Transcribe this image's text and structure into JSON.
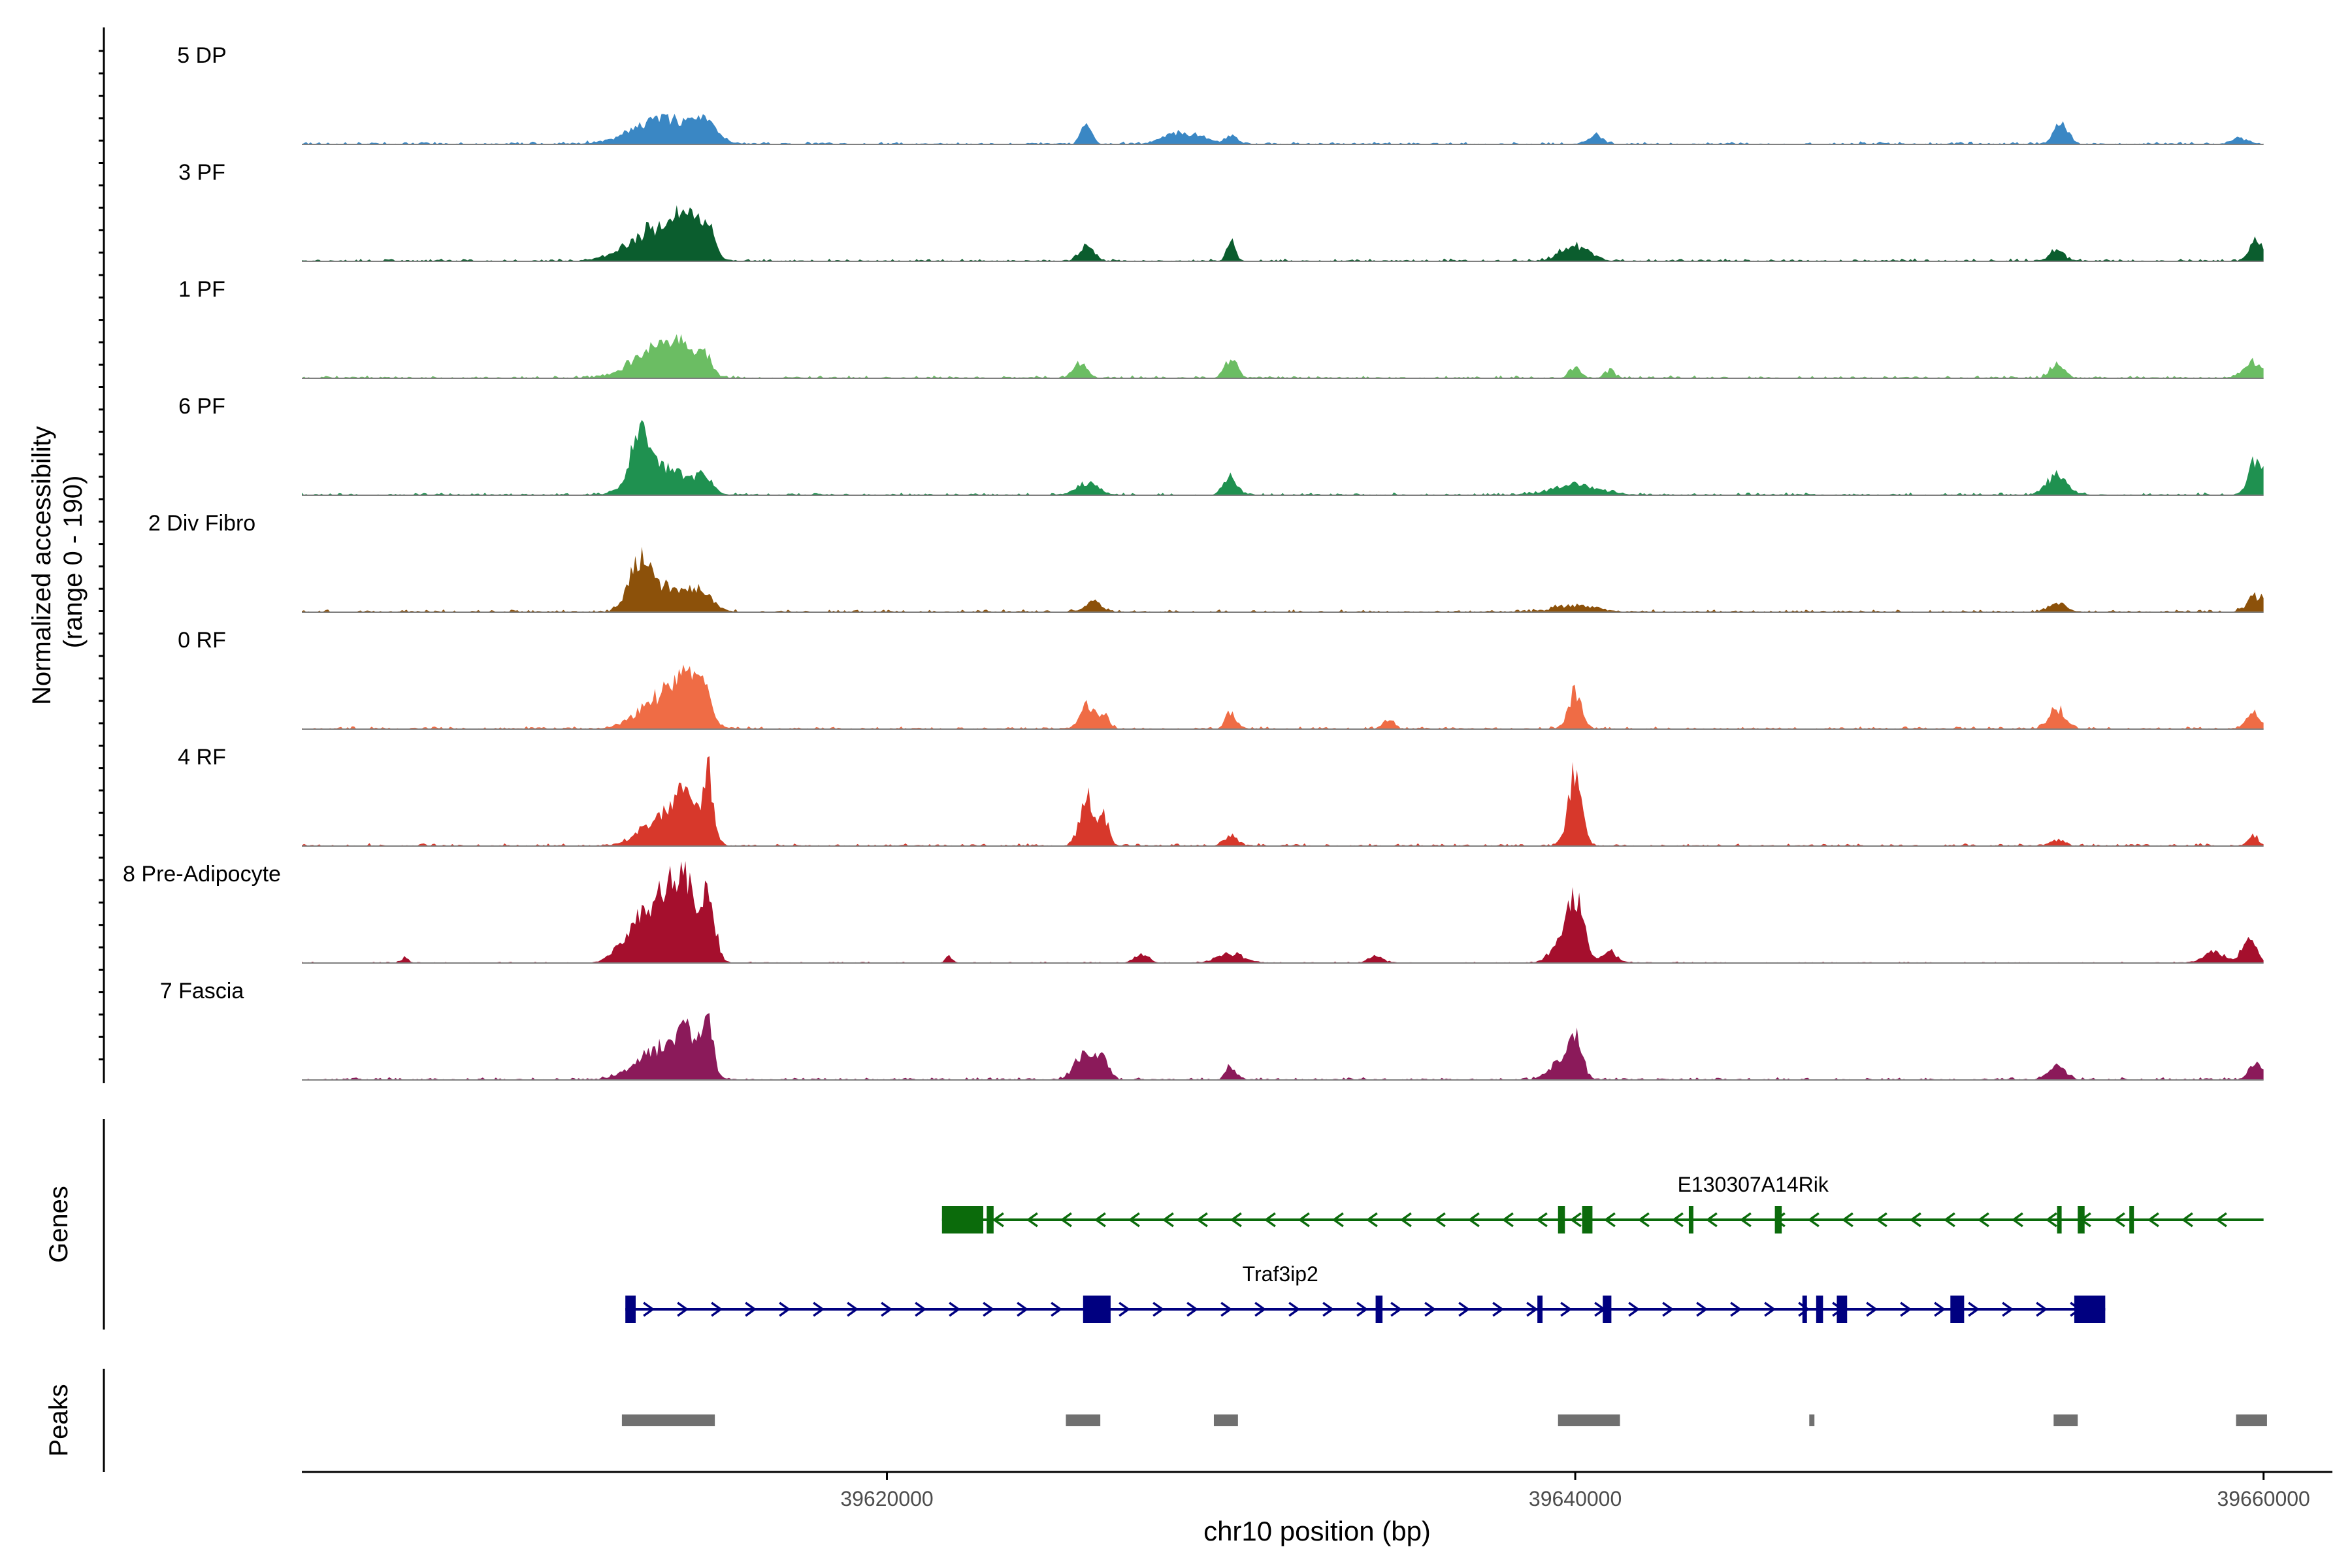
{
  "chart_data": {
    "type": "area",
    "chromosome": "chr10",
    "xlabel": "chr10 position (bp)",
    "ylabel_line1": "Normalized accessibility",
    "ylabel_line2": "(range 0 - 190)",
    "y_range": [
      0,
      190
    ],
    "xlim": [
      39603000,
      39662000
    ],
    "x_ticks": [
      {
        "value": 39620000,
        "label": "39620000"
      },
      {
        "value": 39640000,
        "label": "39640000"
      },
      {
        "value": 39660000,
        "label": "39660000"
      }
    ],
    "track_start": 39603000,
    "track_end": 39660000,
    "series": [
      {
        "name": "5 DP",
        "color": "#3a87c4",
        "noise": 0.03,
        "peaks": [
          [
            39613500,
            0.3,
            900
          ],
          [
            39614700,
            0.22,
            300
          ],
          [
            39625800,
            0.28,
            150
          ],
          [
            39628600,
            0.15,
            500
          ],
          [
            39630000,
            0.1,
            180
          ],
          [
            39640600,
            0.1,
            200
          ],
          [
            39654100,
            0.28,
            200
          ],
          [
            39659300,
            0.07,
            250
          ]
        ]
      },
      {
        "name": "3 PF",
        "color": "#0b5d2e",
        "noise": 0.03,
        "peaks": [
          [
            39613300,
            0.4,
            800
          ],
          [
            39614200,
            0.45,
            300
          ],
          [
            39614800,
            0.35,
            200
          ],
          [
            39625800,
            0.22,
            200
          ],
          [
            39630000,
            0.25,
            120
          ],
          [
            39640000,
            0.2,
            400
          ],
          [
            39654000,
            0.15,
            200
          ],
          [
            39659800,
            0.25,
            200
          ]
        ]
      },
      {
        "name": "1 PF",
        "color": "#6bbd63",
        "noise": 0.03,
        "peaks": [
          [
            39613300,
            0.35,
            700
          ],
          [
            39614000,
            0.3,
            300
          ],
          [
            39614700,
            0.3,
            200
          ],
          [
            39625600,
            0.18,
            200
          ],
          [
            39630000,
            0.25,
            180
          ],
          [
            39640000,
            0.15,
            150
          ],
          [
            39641000,
            0.1,
            150
          ],
          [
            39654000,
            0.18,
            200
          ],
          [
            39659700,
            0.2,
            250
          ]
        ]
      },
      {
        "name": "6 PF",
        "color": "#1f9150",
        "noise": 0.03,
        "peaks": [
          [
            39612800,
            0.6,
            250
          ],
          [
            39613500,
            0.35,
            700
          ],
          [
            39614700,
            0.2,
            200
          ],
          [
            39625800,
            0.15,
            300
          ],
          [
            39630000,
            0.22,
            200
          ],
          [
            39640000,
            0.12,
            700
          ],
          [
            39654000,
            0.25,
            300
          ],
          [
            39659800,
            0.45,
            220
          ]
        ]
      },
      {
        "name": "2 Div Fibro",
        "color": "#8c510a",
        "noise": 0.03,
        "peaks": [
          [
            39612800,
            0.55,
            300
          ],
          [
            39613500,
            0.3,
            500
          ],
          [
            39614500,
            0.25,
            400
          ],
          [
            39626000,
            0.12,
            250
          ],
          [
            39640000,
            0.08,
            600
          ],
          [
            39654000,
            0.12,
            250
          ],
          [
            39659800,
            0.2,
            250
          ]
        ]
      },
      {
        "name": "0 RF",
        "color": "#ef6c45",
        "noise": 0.03,
        "peaks": [
          [
            39613600,
            0.45,
            700
          ],
          [
            39614200,
            0.4,
            300
          ],
          [
            39614700,
            0.32,
            200
          ],
          [
            39625800,
            0.32,
            200
          ],
          [
            39626300,
            0.2,
            150
          ],
          [
            39630000,
            0.22,
            150
          ],
          [
            39634600,
            0.12,
            150
          ],
          [
            39640000,
            0.45,
            200
          ],
          [
            39654000,
            0.25,
            250
          ],
          [
            39659700,
            0.2,
            200
          ]
        ]
      },
      {
        "name": "4 RF",
        "color": "#d7382b",
        "noise": 0.03,
        "peaks": [
          [
            39613600,
            0.45,
            600
          ],
          [
            39614200,
            0.5,
            250
          ],
          [
            39614800,
            0.85,
            150
          ],
          [
            39625800,
            0.6,
            200
          ],
          [
            39626300,
            0.35,
            150
          ],
          [
            39630000,
            0.12,
            200
          ],
          [
            39640000,
            0.9,
            200
          ],
          [
            39654000,
            0.08,
            200
          ],
          [
            39659700,
            0.12,
            150
          ]
        ]
      },
      {
        "name": "8 Pre-Adipocyte",
        "color": "#a50f2d",
        "noise": 0.015,
        "peaks": [
          [
            39612900,
            0.6,
            500
          ],
          [
            39613700,
            0.8,
            300
          ],
          [
            39614200,
            0.85,
            200
          ],
          [
            39614800,
            0.9,
            200
          ],
          [
            39640000,
            0.75,
            250
          ],
          [
            39639500,
            0.18,
            300
          ],
          [
            39641000,
            0.15,
            200
          ],
          [
            39630000,
            0.12,
            400
          ],
          [
            39659600,
            0.35,
            200
          ],
          [
            39658600,
            0.14,
            300
          ],
          [
            39606000,
            0.08,
            100
          ],
          [
            39621800,
            0.08,
            100
          ],
          [
            39627400,
            0.12,
            200
          ],
          [
            39634200,
            0.1,
            200
          ]
        ]
      },
      {
        "name": "7 Fascia",
        "color": "#8b1a5a",
        "noise": 0.03,
        "peaks": [
          [
            39613500,
            0.4,
            700
          ],
          [
            39614200,
            0.45,
            300
          ],
          [
            39614800,
            0.7,
            150
          ],
          [
            39625800,
            0.38,
            300
          ],
          [
            39626300,
            0.22,
            150
          ],
          [
            39630000,
            0.18,
            150
          ],
          [
            39640000,
            0.55,
            200
          ],
          [
            39639500,
            0.2,
            300
          ],
          [
            39654000,
            0.15,
            250
          ],
          [
            39659800,
            0.22,
            200
          ]
        ]
      }
    ],
    "genes_label": "Genes",
    "genes": [
      {
        "name": "E130307A14Rik",
        "strand": "-",
        "color": "#0b6b0b",
        "start": 39621600,
        "end": 39660000,
        "exons": [
          [
            39621600,
            39622800
          ],
          [
            39622900,
            39623100
          ],
          [
            39643300,
            39643350
          ],
          [
            39639500,
            39639700
          ],
          [
            39640200,
            39640500
          ],
          [
            39645800,
            39646000
          ],
          [
            39654000,
            39654100
          ],
          [
            39654600,
            39654800
          ],
          [
            39656100,
            39656150
          ]
        ]
      },
      {
        "name": "Traf3ip2",
        "strand": "+",
        "color": "#000080",
        "start": 39612400,
        "end": 39655400,
        "exons": [
          [
            39612400,
            39612700
          ],
          [
            39625700,
            39626500
          ],
          [
            39634200,
            39634400
          ],
          [
            39638900,
            39639050
          ],
          [
            39640800,
            39641050
          ],
          [
            39646600,
            39646700
          ],
          [
            39647000,
            39647200
          ],
          [
            39647600,
            39647900
          ],
          [
            39650900,
            39651300
          ],
          [
            39654500,
            39655400
          ]
        ]
      }
    ],
    "peaks_label": "Peaks",
    "peak_color": "#707070",
    "peak_regions": [
      [
        39612300,
        39615000
      ],
      [
        39625200,
        39626200
      ],
      [
        39629500,
        39630200
      ],
      [
        39639500,
        39641300
      ],
      [
        39646800,
        39646950
      ],
      [
        39653900,
        39654600
      ],
      [
        39659200,
        39660100
      ]
    ]
  }
}
